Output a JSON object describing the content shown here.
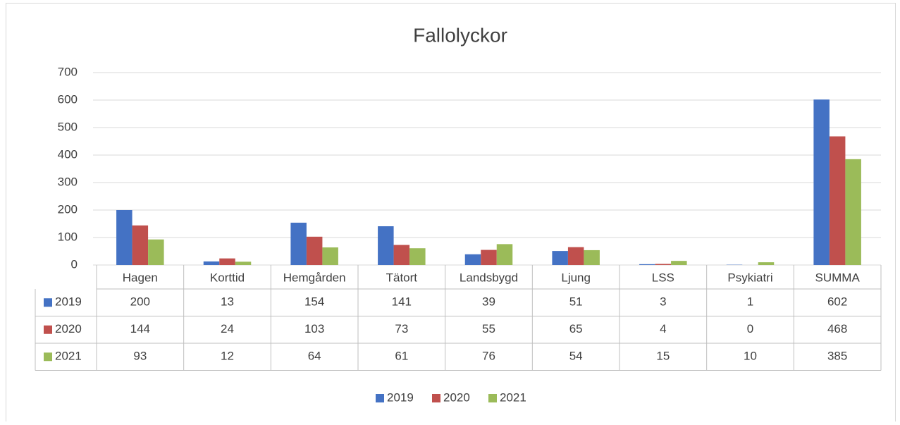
{
  "chart_data": {
    "type": "bar",
    "title": "Fallolyckor",
    "categories": [
      "Hagen",
      "Korttid",
      "Hemgården",
      "Tätort",
      "Landsbygd",
      "Ljung",
      "LSS",
      "Psykiatri",
      "SUMMA"
    ],
    "series": [
      {
        "name": "2019",
        "color": "#4472c4",
        "values": [
          200,
          13,
          154,
          141,
          39,
          51,
          3,
          1,
          602
        ]
      },
      {
        "name": "2020",
        "color": "#c0504d",
        "values": [
          144,
          24,
          103,
          73,
          55,
          65,
          4,
          0,
          468
        ]
      },
      {
        "name": "2021",
        "color": "#9bbb59",
        "values": [
          93,
          12,
          64,
          61,
          76,
          54,
          15,
          10,
          385
        ]
      }
    ],
    "ylim": [
      0,
      700
    ],
    "yticks": [
      0,
      100,
      200,
      300,
      400,
      500,
      600,
      700
    ],
    "grid": true,
    "data_table": true,
    "legend": "bottom"
  }
}
